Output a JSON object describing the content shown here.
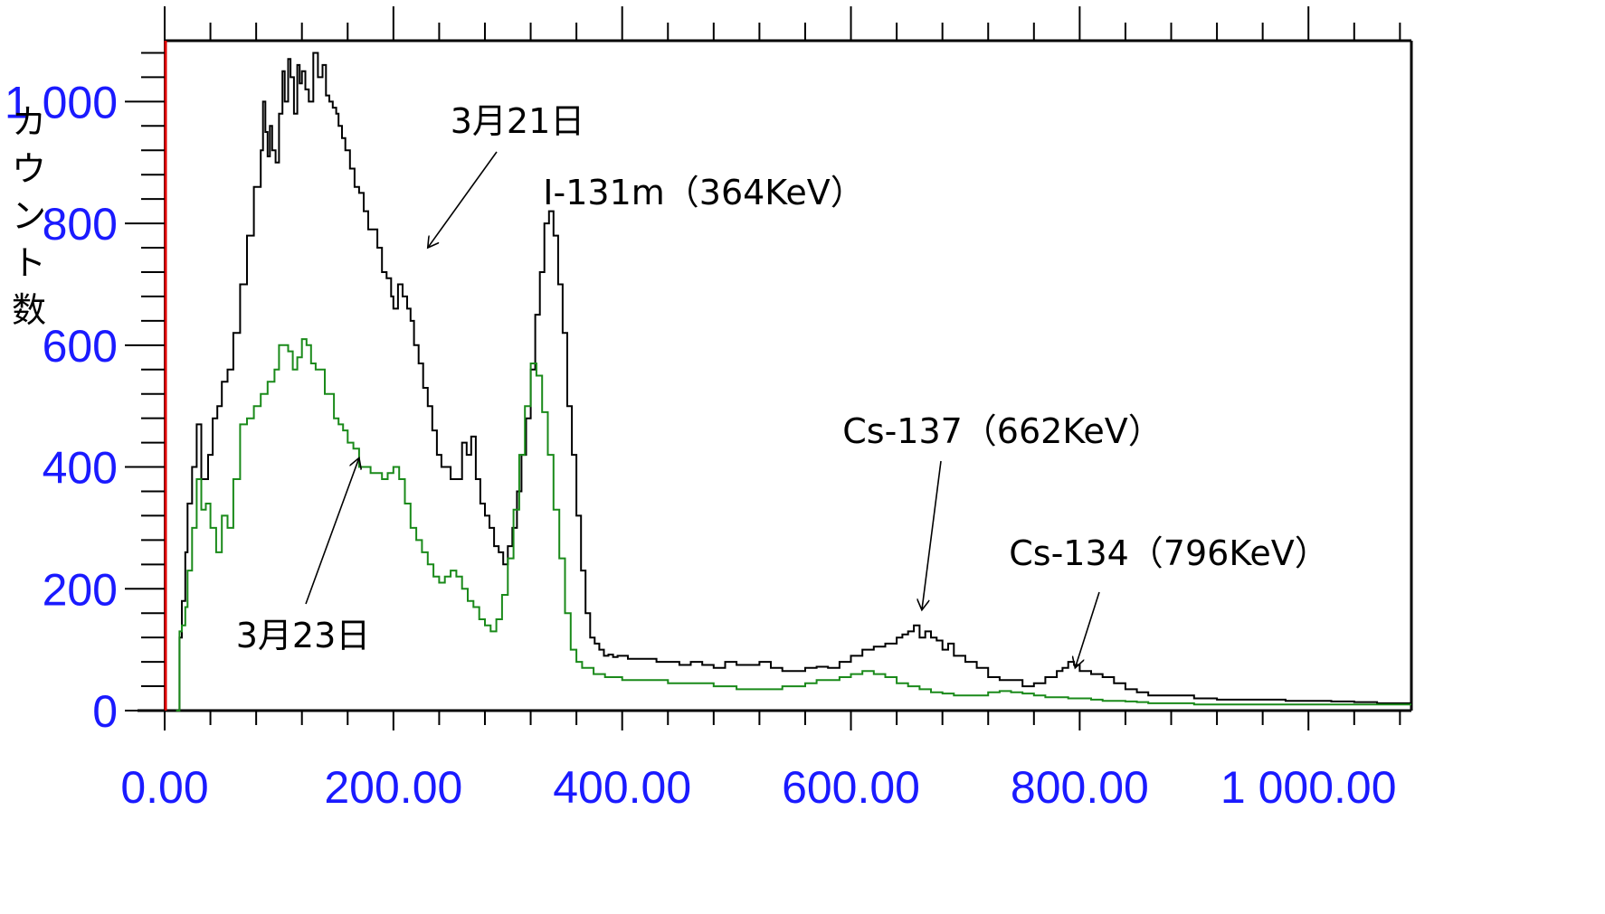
{
  "chart_data": {
    "type": "line",
    "title": "",
    "xlabel": "",
    "ylabel": "カウント数",
    "xlim": [
      0,
      1090
    ],
    "ylim": [
      0,
      1100
    ],
    "x_ticks": [
      0,
      200,
      400,
      600,
      800,
      1000
    ],
    "x_tick_labels": [
      "0.00",
      "200.00",
      "400.00",
      "600.00",
      "800.00",
      "1 000.00"
    ],
    "y_ticks": [
      0,
      200,
      400,
      600,
      800,
      1000
    ],
    "y_tick_labels": [
      "0",
      "200",
      "400",
      "600",
      "800",
      "1 000"
    ],
    "grid": false,
    "marker_line_x": 0,
    "colors": {
      "axis": "#000000",
      "tick_text": "#1a1aff",
      "marker": "#e00000"
    },
    "series": [
      {
        "color": "#000000",
        "x": [
          10,
          13,
          15,
          18,
          20,
          24,
          28,
          32,
          35,
          38,
          42,
          46,
          50,
          55,
          60,
          66,
          72,
          78,
          84,
          86,
          88,
          90,
          92,
          94,
          97,
          100,
          103,
          105,
          108,
          110,
          113,
          116,
          118,
          120,
          123,
          126,
          130,
          134,
          138,
          141,
          144,
          147,
          150,
          152,
          155,
          158,
          162,
          166,
          170,
          174,
          178,
          182,
          186,
          190,
          194,
          198,
          200,
          204,
          208,
          212,
          215,
          218,
          222,
          226,
          230,
          234,
          238,
          242,
          246,
          250,
          255,
          260,
          264,
          268,
          272,
          276,
          280,
          284,
          288,
          292,
          296,
          300,
          304,
          308,
          312,
          316,
          320,
          324,
          328,
          332,
          336,
          340,
          344,
          348,
          352,
          356,
          360,
          364,
          368,
          372,
          376,
          380,
          384,
          388,
          392,
          396,
          400,
          405,
          410,
          420,
          430,
          440,
          450,
          460,
          470,
          480,
          490,
          500,
          510,
          520,
          530,
          540,
          550,
          560,
          570,
          580,
          590,
          600,
          610,
          620,
          630,
          640,
          645,
          650,
          655,
          660,
          665,
          670,
          675,
          680,
          685,
          690,
          700,
          710,
          720,
          730,
          740,
          750,
          760,
          770,
          780,
          785,
          790,
          795,
          800,
          810,
          820,
          830,
          840,
          850,
          860,
          880,
          900,
          920,
          940,
          960,
          980,
          1000,
          1020,
          1040,
          1060,
          1080,
          1090
        ],
        "y": [
          0,
          120,
          180,
          260,
          340,
          400,
          470,
          380,
          380,
          420,
          480,
          500,
          540,
          560,
          620,
          700,
          780,
          860,
          920,
          1000,
          950,
          910,
          960,
          920,
          900,
          980,
          1050,
          1000,
          1070,
          1040,
          980,
          1060,
          1030,
          1050,
          1020,
          1000,
          1080,
          1040,
          1060,
          1010,
          1000,
          990,
          980,
          960,
          940,
          920,
          890,
          860,
          850,
          820,
          790,
          790,
          760,
          720,
          710,
          680,
          660,
          700,
          680,
          660,
          640,
          600,
          570,
          530,
          500,
          460,
          420,
          400,
          400,
          380,
          380,
          440,
          420,
          450,
          380,
          340,
          320,
          300,
          270,
          260,
          240,
          270,
          300,
          360,
          420,
          480,
          560,
          650,
          720,
          800,
          820,
          780,
          700,
          620,
          500,
          420,
          320,
          230,
          160,
          120,
          110,
          100,
          90,
          92,
          88,
          90,
          90,
          85,
          85,
          85,
          80,
          80,
          75,
          80,
          75,
          70,
          80,
          75,
          75,
          80,
          70,
          65,
          65,
          70,
          72,
          70,
          80,
          90,
          100,
          105,
          110,
          120,
          125,
          130,
          140,
          120,
          130,
          120,
          115,
          100,
          110,
          90,
          80,
          70,
          55,
          50,
          50,
          40,
          45,
          55,
          65,
          70,
          80,
          75,
          65,
          60,
          55,
          45,
          35,
          30,
          25,
          25,
          20,
          18,
          18,
          18,
          16,
          16,
          15,
          14,
          12,
          12,
          12
        ],
        "draw": {
          "mode": "step",
          "jitter": 0
        }
      },
      {
        "color": "#1a8a1a",
        "x": [
          10,
          13,
          15,
          18,
          20,
          24,
          28,
          32,
          36,
          40,
          45,
          50,
          55,
          60,
          66,
          72,
          78,
          84,
          90,
          96,
          100,
          104,
          108,
          112,
          116,
          120,
          124,
          128,
          132,
          136,
          140,
          144,
          148,
          152,
          156,
          160,
          165,
          170,
          175,
          180,
          185,
          190,
          195,
          200,
          205,
          210,
          215,
          220,
          225,
          230,
          235,
          240,
          245,
          250,
          255,
          260,
          265,
          270,
          275,
          280,
          285,
          290,
          295,
          300,
          305,
          310,
          315,
          320,
          325,
          330,
          335,
          340,
          345,
          350,
          355,
          360,
          365,
          370,
          375,
          380,
          385,
          390,
          395,
          400,
          410,
          420,
          430,
          440,
          450,
          460,
          470,
          480,
          490,
          500,
          510,
          520,
          530,
          540,
          550,
          560,
          570,
          580,
          590,
          600,
          610,
          620,
          630,
          640,
          650,
          660,
          670,
          680,
          690,
          700,
          710,
          720,
          730,
          740,
          750,
          760,
          770,
          780,
          790,
          800,
          810,
          820,
          830,
          840,
          850,
          860,
          880,
          900,
          920,
          940,
          960,
          980,
          1000,
          1020,
          1040,
          1060,
          1080,
          1090
        ],
        "y": [
          0,
          130,
          140,
          170,
          230,
          300,
          380,
          330,
          340,
          300,
          260,
          320,
          300,
          380,
          470,
          480,
          500,
          520,
          540,
          560,
          600,
          600,
          590,
          560,
          580,
          610,
          600,
          570,
          560,
          560,
          520,
          520,
          480,
          470,
          460,
          440,
          430,
          400,
          400,
          390,
          390,
          380,
          390,
          400,
          380,
          340,
          300,
          280,
          260,
          240,
          220,
          210,
          220,
          230,
          220,
          200,
          180,
          170,
          150,
          140,
          130,
          150,
          190,
          250,
          330,
          420,
          500,
          570,
          550,
          490,
          420,
          330,
          250,
          160,
          100,
          80,
          70,
          70,
          60,
          60,
          55,
          55,
          55,
          50,
          50,
          50,
          50,
          45,
          45,
          45,
          45,
          40,
          40,
          35,
          35,
          35,
          35,
          40,
          40,
          45,
          50,
          50,
          55,
          60,
          65,
          60,
          55,
          45,
          40,
          35,
          30,
          28,
          25,
          25,
          25,
          30,
          32,
          30,
          28,
          25,
          22,
          22,
          20,
          20,
          18,
          16,
          16,
          15,
          14,
          12,
          12,
          10,
          10,
          10,
          10,
          10,
          10,
          10,
          10,
          10,
          10,
          10
        ],
        "draw": {
          "mode": "step",
          "jitter": 0
        }
      }
    ],
    "annotations": [
      {
        "text": "3月21日",
        "arrow_to": [
          230,
          760
        ]
      },
      {
        "text": "I-131m（364KeV）",
        "arrow_to": null
      },
      {
        "text": "3月23日",
        "arrow_to": [
          170,
          415
        ]
      },
      {
        "text": "Cs-137（662KeV）",
        "arrow_to": [
          662,
          165
        ]
      },
      {
        "text": "Cs-134（796KeV）",
        "arrow_to": [
          796,
          70
        ]
      }
    ]
  }
}
